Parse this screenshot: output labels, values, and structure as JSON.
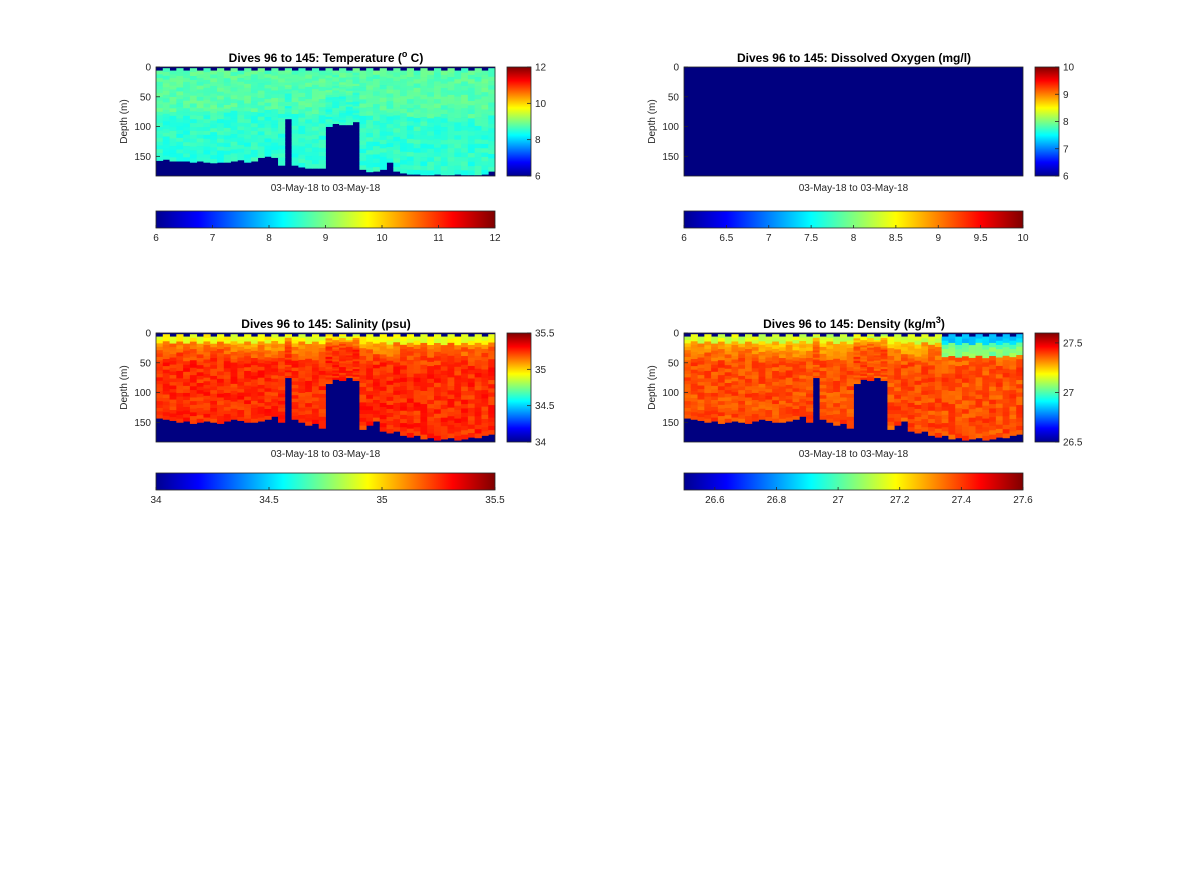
{
  "charts": {
    "temperature": {
      "title": "Dives 96 to 145: Temperature (",
      "title_sup": "o",
      "title_tail": " C)"
    },
    "oxygen": {
      "title": "Dives 96 to 145: Dissolved Oxygen (mg/l)"
    },
    "salinity": {
      "title": "Dives 96 to 145: Salinity (psu)"
    },
    "density": {
      "title": "Dives 96 to 145: Density (kg/m",
      "title_sup": "3",
      "title_tail": ")"
    }
  },
  "chart_data": [
    {
      "id": "temperature",
      "type": "heatmap",
      "title": "Dives 96 to 145: Temperature (o C)",
      "xlabel": "03-May-18 to 03-May-18",
      "ylabel": "Depth (m)",
      "ylim": [
        0,
        183
      ],
      "y_reversed": true,
      "yticks": [
        0,
        50,
        100,
        150
      ],
      "dives": [
        96,
        145
      ],
      "colormap": "jet",
      "clim": [
        6,
        12
      ],
      "colorbar_ticks": [
        6,
        8,
        10,
        12
      ],
      "horizontal_colorbar_ticks": [
        6,
        7,
        8,
        9,
        10,
        11,
        12
      ],
      "typical_value": 8.6,
      "bottom_depth_profile": [
        157,
        155,
        158,
        158,
        158,
        160,
        158,
        160,
        161,
        160,
        160,
        158,
        156,
        160,
        158,
        152,
        150,
        152,
        165,
        87,
        165,
        168,
        170,
        170,
        170,
        100,
        95,
        97,
        97,
        92,
        172,
        176,
        175,
        172,
        160,
        175,
        178,
        180,
        180,
        181,
        181,
        180,
        181,
        181,
        180,
        181,
        181,
        181,
        180,
        175
      ]
    },
    {
      "id": "oxygen",
      "type": "heatmap",
      "title": "Dives 96 to 145: Dissolved Oxygen (mg/l)",
      "xlabel": "03-May-18 to 03-May-18",
      "ylabel": "Depth (m)",
      "ylim": [
        0,
        183
      ],
      "y_reversed": true,
      "yticks": [
        0,
        50,
        100,
        150
      ],
      "dives": [
        96,
        145
      ],
      "colormap": "jet",
      "clim": [
        6,
        10
      ],
      "colorbar_ticks": [
        6,
        7,
        8,
        9,
        10
      ],
      "horizontal_colorbar_ticks": [
        6,
        6.5,
        7,
        7.5,
        8,
        8.5,
        9,
        9.5,
        10
      ],
      "typical_value": 6
    },
    {
      "id": "salinity",
      "type": "heatmap",
      "title": "Dives 96 to 145: Salinity (psu)",
      "xlabel": "03-May-18 to 03-May-18",
      "ylabel": "Depth (m)",
      "ylim": [
        0,
        183
      ],
      "y_reversed": true,
      "yticks": [
        0,
        50,
        100,
        150
      ],
      "dives": [
        96,
        145
      ],
      "colormap": "jet",
      "clim": [
        34,
        35.5
      ],
      "colorbar_ticks": [
        34,
        34.5,
        35,
        35.5
      ],
      "horizontal_colorbar_ticks": [
        34,
        34.5,
        35,
        35.5
      ],
      "typical_value": 35.25,
      "bottom_depth_profile": [
        143,
        145,
        147,
        150,
        148,
        152,
        150,
        148,
        150,
        152,
        148,
        145,
        147,
        150,
        150,
        148,
        145,
        140,
        150,
        75,
        145,
        150,
        155,
        152,
        160,
        85,
        78,
        80,
        75,
        80,
        162,
        155,
        148,
        165,
        168,
        165,
        172,
        175,
        172,
        178,
        176,
        180,
        178,
        176,
        180,
        178,
        175,
        176,
        172,
        170
      ]
    },
    {
      "id": "density",
      "type": "heatmap",
      "title": "Dives 96 to 145: Density (kg/m3)",
      "xlabel": "03-May-18 to 03-May-18",
      "ylabel": "Depth (m)",
      "ylim": [
        0,
        183
      ],
      "y_reversed": true,
      "yticks": [
        0,
        50,
        100,
        150
      ],
      "dives": [
        96,
        145
      ],
      "colormap": "jet",
      "clim": [
        26.5,
        27.6
      ],
      "colorbar_ticks": [
        26.5,
        27,
        27.5
      ],
      "horizontal_colorbar_ticks": [
        26.6,
        26.8,
        27,
        27.2,
        27.4,
        27.6
      ],
      "typical_value": 27.38,
      "bottom_depth_profile": [
        143,
        145,
        147,
        150,
        148,
        152,
        150,
        148,
        150,
        152,
        148,
        145,
        147,
        150,
        150,
        148,
        145,
        140,
        150,
        75,
        145,
        150,
        155,
        152,
        160,
        85,
        78,
        80,
        75,
        80,
        162,
        155,
        148,
        165,
        168,
        165,
        172,
        175,
        172,
        178,
        176,
        180,
        178,
        176,
        180,
        178,
        175,
        176,
        172,
        170
      ]
    }
  ]
}
